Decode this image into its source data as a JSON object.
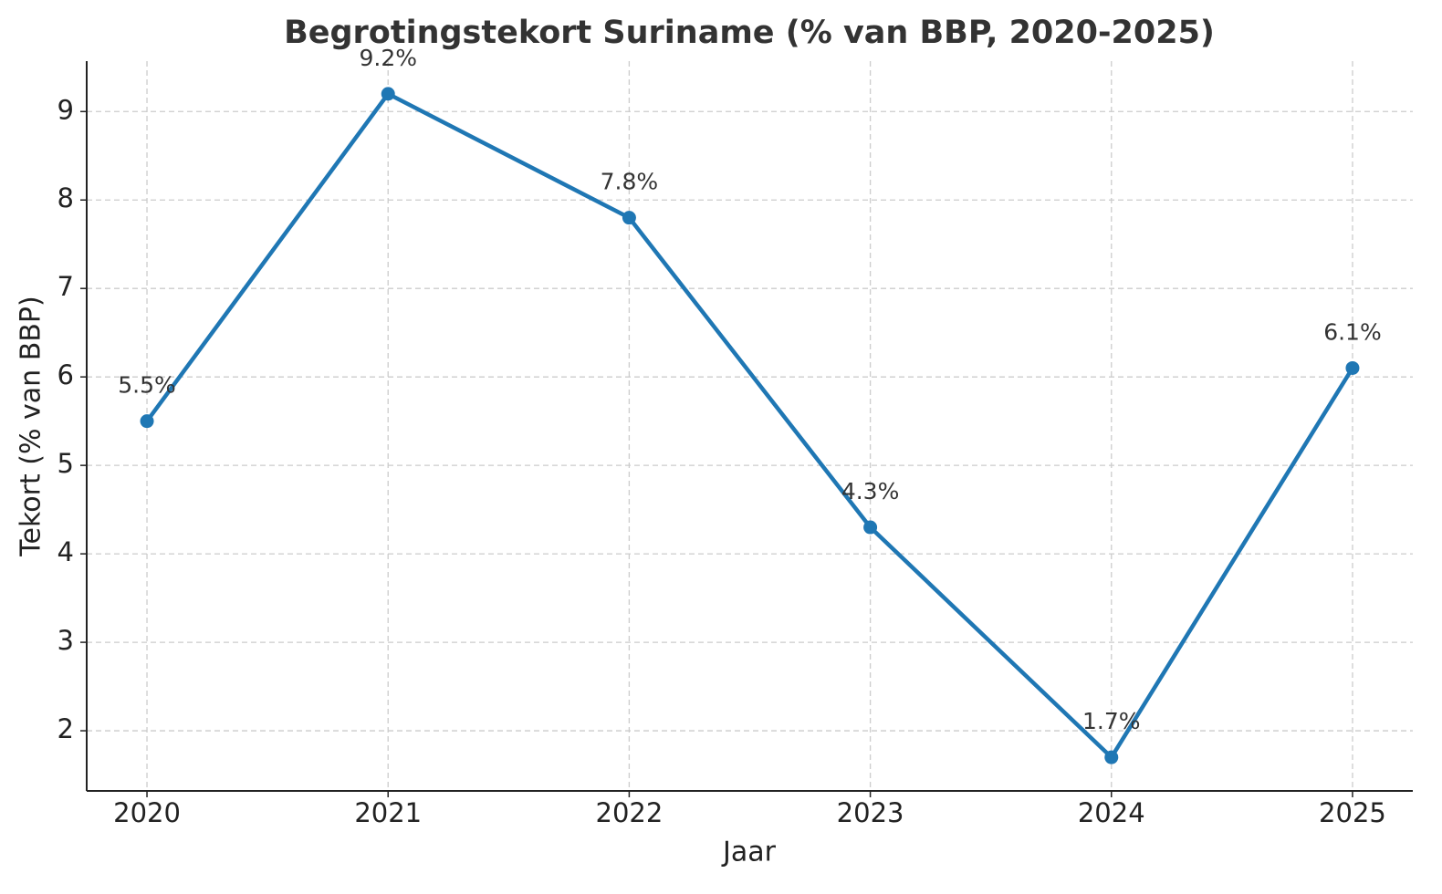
{
  "chart_data": {
    "type": "line",
    "title": "Begrotingstekort Suriname (% van BBP, 2020-2025)",
    "x_label": "Jaar",
    "y_label": "Tekort (% van BBP)",
    "x": [
      2020,
      2021,
      2022,
      2023,
      2024,
      2025
    ],
    "values": [
      5.5,
      9.2,
      7.8,
      4.3,
      1.7,
      6.1
    ],
    "value_labels": [
      "5.5%",
      "9.2%",
      "7.8%",
      "4.3%",
      "1.7%",
      "6.1%"
    ],
    "color": "#1f77b4",
    "xlim": [
      2019.75,
      2025.25
    ],
    "xticks": [
      2020,
      2021,
      2022,
      2023,
      2024,
      2025
    ],
    "ylim": [
      1.32,
      9.57
    ],
    "yticks": [
      2,
      3,
      4,
      5,
      6,
      7,
      8,
      9
    ],
    "grid": true
  }
}
